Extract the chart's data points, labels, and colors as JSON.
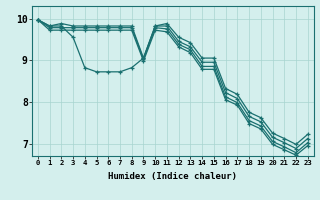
{
  "xlabel": "Humidex (Indice chaleur)",
  "background_color": "#d4efed",
  "line_color": "#1a7070",
  "grid_color": "#a8d4d0",
  "xlim": [
    -0.5,
    23.5
  ],
  "ylim": [
    6.7,
    10.3
  ],
  "xticks": [
    0,
    1,
    2,
    3,
    4,
    5,
    6,
    7,
    8,
    9,
    10,
    11,
    12,
    13,
    14,
    15,
    16,
    17,
    18,
    19,
    20,
    21,
    22,
    23
  ],
  "yticks": [
    7,
    8,
    9,
    10
  ],
  "series": [
    [
      9.97,
      9.82,
      9.88,
      9.82,
      9.82,
      9.82,
      9.82,
      9.82,
      9.82,
      9.05,
      9.82,
      9.88,
      9.55,
      9.42,
      9.05,
      9.05,
      8.32,
      8.18,
      7.75,
      7.62,
      7.25,
      7.12,
      6.98,
      7.22
    ],
    [
      9.97,
      9.82,
      9.82,
      9.55,
      8.82,
      8.72,
      8.72,
      8.72,
      8.82,
      9.05,
      9.82,
      9.82,
      9.45,
      9.32,
      8.95,
      8.95,
      8.22,
      8.08,
      7.65,
      7.52,
      7.15,
      7.02,
      6.88,
      7.12
    ],
    [
      9.97,
      9.78,
      9.78,
      9.78,
      9.78,
      9.78,
      9.78,
      9.78,
      9.78,
      9.02,
      9.78,
      9.75,
      9.38,
      9.25,
      8.85,
      8.85,
      8.12,
      7.98,
      7.55,
      7.42,
      7.05,
      6.92,
      6.78,
      7.02
    ],
    [
      9.97,
      9.72,
      9.72,
      9.72,
      9.72,
      9.72,
      9.72,
      9.72,
      9.72,
      8.98,
      9.72,
      9.68,
      9.32,
      9.18,
      8.78,
      8.78,
      8.05,
      7.92,
      7.48,
      7.35,
      6.98,
      6.85,
      6.72,
      6.95
    ]
  ]
}
